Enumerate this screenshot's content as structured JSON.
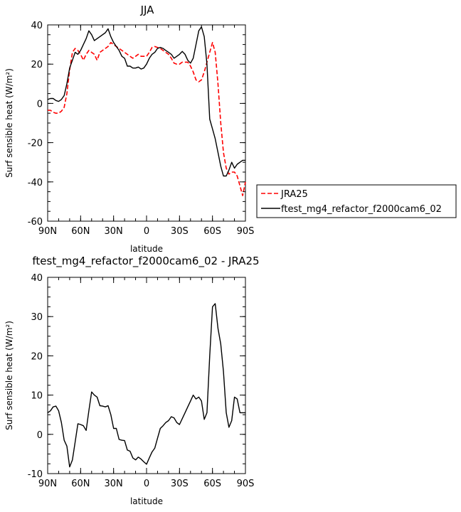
{
  "top_title": "JJA",
  "bottom_title": "ftest_mg4_refactor_f2000cam6_02 - JRA25",
  "chart_data": [
    {
      "type": "line",
      "title": "JJA",
      "xlabel": "latitude",
      "ylabel": "Surf sensible heat (W/m²)",
      "xlim": [
        90,
        -90
      ],
      "ylim": [
        -60,
        40
      ],
      "xticks": [
        90,
        60,
        30,
        0,
        -30,
        -60,
        -90
      ],
      "xtick_labels": [
        "90N",
        "60N",
        "30N",
        "0",
        "30S",
        "60S",
        "90S"
      ],
      "yticks": [
        -60,
        -40,
        -20,
        0,
        20,
        40
      ],
      "ytick_labels": [
        "-60",
        "-40",
        "-20",
        "0",
        "20",
        "40"
      ],
      "legend": {
        "placement": "outside-right"
      },
      "series": [
        {
          "name": "JRA25",
          "color": "#ff0000",
          "style": "dashed",
          "x": [
            90,
            87.5,
            85,
            82.5,
            80,
            77.5,
            75,
            72.5,
            70,
            67.5,
            65,
            62.5,
            60,
            57.5,
            55,
            52.5,
            50,
            47.5,
            45,
            42.5,
            40,
            37.5,
            35,
            32.5,
            30,
            27.5,
            25,
            22.5,
            20,
            17.5,
            15,
            12.5,
            10,
            7.5,
            5,
            2.5,
            0,
            -2.5,
            -5,
            -7.5,
            -10,
            -12.5,
            -15,
            -17.5,
            -20,
            -22.5,
            -25,
            -27.5,
            -30,
            -32.5,
            -35,
            -37.5,
            -40,
            -42.5,
            -45,
            -47.5,
            -50,
            -52.5,
            -55,
            -57.5,
            -60,
            -62.5,
            -65,
            -67.5,
            -70,
            -72.5,
            -75,
            -77.5,
            -80,
            -82.5,
            -85,
            -87.5,
            -90
          ],
          "y": [
            -3.5,
            -3.5,
            -4.5,
            -5,
            -5,
            -4,
            -2,
            5,
            17,
            26,
            28,
            27,
            25,
            22,
            25,
            27,
            26,
            25,
            22,
            26,
            27,
            28,
            29,
            31,
            30,
            29,
            28,
            27,
            26,
            25,
            24,
            23,
            24,
            25,
            24,
            24,
            24,
            26,
            28.5,
            29,
            28.5,
            28,
            27,
            26,
            25,
            23,
            20.5,
            20,
            20,
            21,
            21,
            21,
            19,
            16,
            12,
            11,
            12,
            16,
            21,
            26,
            31,
            26,
            10,
            -10,
            -25,
            -33,
            -36,
            -35,
            -35,
            -37,
            -42,
            -47,
            -40
          ]
        },
        {
          "name": "ftest_mg4_refactor_f2000cam6_02",
          "color": "#000000",
          "style": "solid",
          "x": [
            90,
            87.5,
            85,
            82.5,
            80,
            77.5,
            75,
            72.5,
            70,
            67.5,
            65,
            62.5,
            60,
            57.5,
            55,
            52.5,
            50,
            47.5,
            45,
            42.5,
            40,
            37.5,
            35,
            32.5,
            30,
            27.5,
            25,
            22.5,
            20,
            17.5,
            15,
            12.5,
            10,
            7.5,
            5,
            2.5,
            0,
            -2.5,
            -5,
            -7.5,
            -10,
            -12.5,
            -15,
            -17.5,
            -20,
            -22.5,
            -25,
            -27.5,
            -30,
            -32.5,
            -35,
            -37.5,
            -40,
            -42.5,
            -45,
            -47.5,
            -50,
            -52.5,
            -55,
            -57.5,
            -60,
            -62.5,
            -65,
            -67.5,
            -70,
            -72.5,
            -75,
            -77.5,
            -80,
            -82.5,
            -85,
            -87.5,
            -90
          ],
          "y": [
            2,
            2.5,
            2.5,
            1.5,
            1,
            2,
            4,
            10,
            18,
            22,
            26,
            25,
            27,
            30,
            33,
            37,
            35,
            32,
            33,
            34,
            35,
            36,
            38,
            34,
            31,
            29,
            27,
            24,
            23,
            19,
            19,
            18,
            18,
            18.5,
            17.5,
            18,
            20,
            23,
            25,
            26,
            28,
            28.5,
            28,
            27,
            26,
            25,
            23,
            24,
            25,
            26.5,
            25,
            22,
            20.5,
            23,
            30,
            37,
            39,
            34,
            20,
            -8,
            -13,
            -18,
            -25,
            -32,
            -37,
            -37,
            -34,
            -30,
            -33,
            -31,
            -30,
            -29,
            -29
          ]
        }
      ]
    },
    {
      "type": "line",
      "title": "ftest_mg4_refactor_f2000cam6_02 - JRA25",
      "xlabel": "latitude",
      "ylabel": "Surf sensible heat (W/m²)",
      "xlim": [
        90,
        -90
      ],
      "ylim": [
        -10,
        40
      ],
      "xticks": [
        90,
        60,
        30,
        0,
        -30,
        -60,
        -90
      ],
      "xtick_labels": [
        "90N",
        "60N",
        "30N",
        "0",
        "30S",
        "60S",
        "90S"
      ],
      "yticks": [
        -10,
        0,
        10,
        20,
        30,
        40
      ],
      "ytick_labels": [
        "-10",
        "0",
        "10",
        "20",
        "30",
        "40"
      ],
      "series": [
        {
          "color": "#000000",
          "style": "solid",
          "x": [
            90,
            87.5,
            85,
            82.5,
            80,
            77.5,
            75,
            72.5,
            70,
            67.5,
            65,
            62.5,
            60,
            57.5,
            55,
            52.5,
            50,
            47.5,
            45,
            42.5,
            40,
            37.5,
            35,
            32.5,
            30,
            27.5,
            25,
            22.5,
            20,
            17.5,
            15,
            12.5,
            10,
            7.5,
            5,
            2.5,
            0,
            -2.5,
            -5,
            -7.5,
            -10,
            -12.5,
            -15,
            -17.5,
            -20,
            -22.5,
            -25,
            -27.5,
            -30,
            -32.5,
            -35,
            -37.5,
            -40,
            -42.5,
            -45,
            -47.5,
            -50,
            -52.5,
            -55,
            -57.5,
            -60,
            -62.5,
            -65,
            -67.5,
            -70,
            -72.5,
            -75,
            -77.5,
            -80,
            -82.5,
            -85,
            -87.5,
            -90
          ],
          "y": [
            5.5,
            6,
            7,
            7.2,
            6,
            3,
            -1.5,
            -3,
            -8.3,
            -6.5,
            -2,
            2.7,
            2.5,
            2.2,
            1,
            6,
            10.8,
            10,
            9.5,
            7.3,
            7.2,
            7,
            7.3,
            5,
            1.5,
            1.5,
            -1.3,
            -1.5,
            -1.6,
            -4,
            -4.3,
            -6,
            -6.5,
            -5.8,
            -6.3,
            -7,
            -7.6,
            -6,
            -4.5,
            -3.5,
            -1,
            1.5,
            2.2,
            3,
            3.5,
            4.5,
            4.2,
            3,
            2.5,
            4,
            5.5,
            7,
            8.5,
            10,
            9,
            9.5,
            8.5,
            3.8,
            5.5,
            20,
            32.5,
            33.3,
            27,
            23,
            16,
            5.5,
            1.8,
            3.5,
            9.5,
            9,
            5.5,
            5.5,
            5.5
          ]
        }
      ]
    }
  ]
}
